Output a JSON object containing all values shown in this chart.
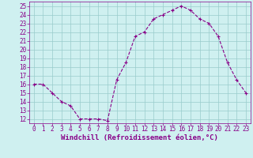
{
  "x": [
    0,
    1,
    2,
    3,
    4,
    5,
    6,
    7,
    8,
    9,
    10,
    11,
    12,
    13,
    14,
    15,
    16,
    17,
    18,
    19,
    20,
    21,
    22,
    23
  ],
  "y": [
    16,
    16,
    15,
    14,
    13.5,
    12,
    12,
    12,
    11.8,
    16.5,
    18.5,
    21.5,
    22,
    23.5,
    24,
    24.5,
    25,
    24.5,
    23.5,
    23,
    21.5,
    18.5,
    16.5,
    15
  ],
  "line_color": "#880088",
  "marker": "+",
  "marker_size": 3.5,
  "bg_color": "#cff0f0",
  "grid_color": "#99cccc",
  "xlabel": "Windchill (Refroidissement éolien,°C)",
  "xlabel_color": "#880088",
  "xlim": [
    -0.5,
    23.5
  ],
  "ylim": [
    11.5,
    25.5
  ],
  "yticks": [
    12,
    13,
    14,
    15,
    16,
    17,
    18,
    19,
    20,
    21,
    22,
    23,
    24,
    25
  ],
  "xticks": [
    0,
    1,
    2,
    3,
    4,
    5,
    6,
    7,
    8,
    9,
    10,
    11,
    12,
    13,
    14,
    15,
    16,
    17,
    18,
    19,
    20,
    21,
    22,
    23
  ],
  "tick_color": "#880088",
  "font_size": 5.5,
  "xlabel_font_size": 6.5,
  "linewidth": 0.8,
  "markeredgewidth": 0.8
}
